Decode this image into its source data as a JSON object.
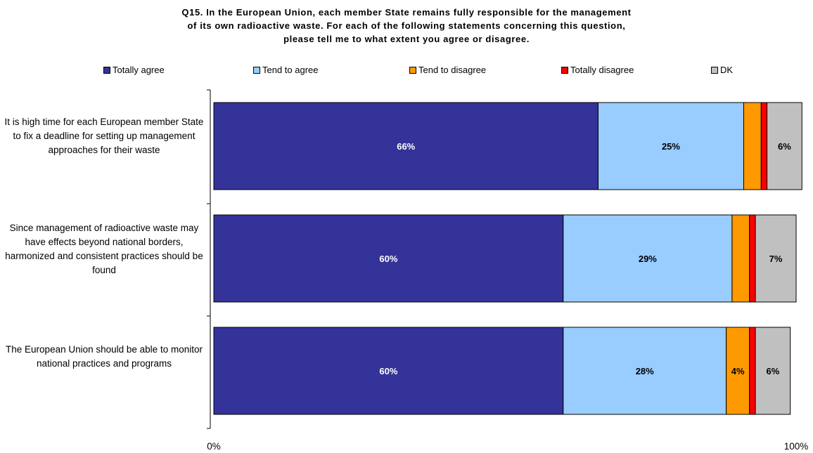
{
  "title_lines": [
    "Q15. In the European Union, each member State remains fully responsible for the management",
    "of its own radioactive waste. For each of the following statements concerning this question,",
    "please tell me to what extent you agree or disagree."
  ],
  "colors": {
    "Totally agree": "#333399",
    "Tend to agree": "#99CCFF",
    "Tend to disagree": "#FF9900",
    "Totally disagree": "#FF0000",
    "DK": "#C0C0C0"
  },
  "chart_data": {
    "type": "bar",
    "orientation": "horizontal",
    "stacked": true,
    "title": "Q15. In the European Union, each member State remains fully responsible for the management of its own radioactive waste. For each of the following statements concerning this question, please tell me to what extent you agree or disagree.",
    "categories": [
      "It is high time for each European member State to fix a deadline for setting up management approaches for their waste",
      "Since management of radioactive waste may have effects beyond national borders, harmonized and consistent practices should be found",
      "The European Union should be able to monitor national practices and programs"
    ],
    "series": [
      {
        "name": "Totally agree",
        "values": [
          66,
          60,
          60
        ],
        "labels": [
          "66%",
          "60%",
          "60%"
        ]
      },
      {
        "name": "Tend to agree",
        "values": [
          25,
          29,
          28
        ],
        "labels": [
          "25%",
          "29%",
          "28%"
        ]
      },
      {
        "name": "Tend to disagree",
        "values": [
          3,
          3,
          4
        ],
        "labels": [
          "",
          "",
          "4%"
        ]
      },
      {
        "name": "Totally disagree",
        "values": [
          1,
          1,
          1
        ],
        "labels": [
          "",
          "",
          ""
        ]
      },
      {
        "name": "DK",
        "values": [
          6,
          7,
          6
        ],
        "labels": [
          "6%",
          "7%",
          "6%"
        ]
      }
    ],
    "xlim": [
      0,
      100
    ],
    "x_ticks": [
      "0%",
      "100%"
    ],
    "legend_position": "top",
    "grid": false
  }
}
